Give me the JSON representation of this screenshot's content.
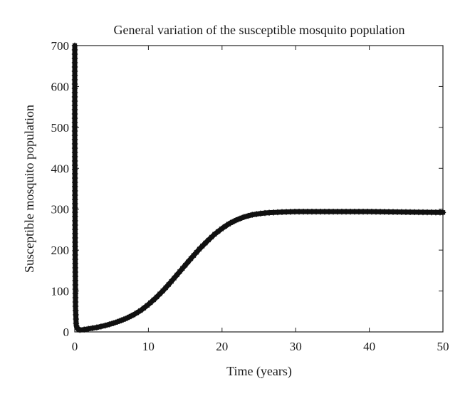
{
  "chart_data": {
    "type": "line",
    "title": "General variation of the susceptible mosquito population",
    "xlabel": "Time (years)",
    "ylabel": "Susceptible mosquito population",
    "xlim": [
      0,
      50
    ],
    "ylim": [
      0,
      700
    ],
    "xticks": [
      0,
      10,
      20,
      30,
      40,
      50
    ],
    "yticks": [
      0,
      100,
      200,
      300,
      400,
      500,
      600,
      700
    ],
    "xtick_labels": [
      "0",
      "10",
      "20",
      "30",
      "40",
      "50"
    ],
    "ytick_labels": [
      "0",
      "100",
      "200",
      "300",
      "400",
      "500",
      "600",
      "700"
    ],
    "grid": false,
    "marker": "*",
    "line_color": "#111111",
    "series": [
      {
        "x": [
          0,
          0,
          0.05,
          0.1,
          0.2,
          0.5,
          1,
          2,
          3,
          4,
          5,
          6,
          7,
          8,
          9,
          10,
          11,
          12,
          13,
          14,
          15,
          16,
          17,
          18,
          19,
          20,
          21,
          22,
          23,
          24,
          25,
          26,
          27,
          28,
          30,
          32,
          35,
          40,
          45,
          50
        ],
        "y": [
          700,
          500,
          200,
          60,
          15,
          5,
          5,
          8,
          11,
          15,
          20,
          26,
          33,
          42,
          53,
          67,
          83,
          101,
          121,
          142,
          163,
          184,
          204,
          222,
          239,
          253,
          265,
          274,
          281,
          286,
          289,
          291,
          292,
          293,
          294,
          294,
          294,
          294,
          293,
          292
        ]
      }
    ]
  }
}
